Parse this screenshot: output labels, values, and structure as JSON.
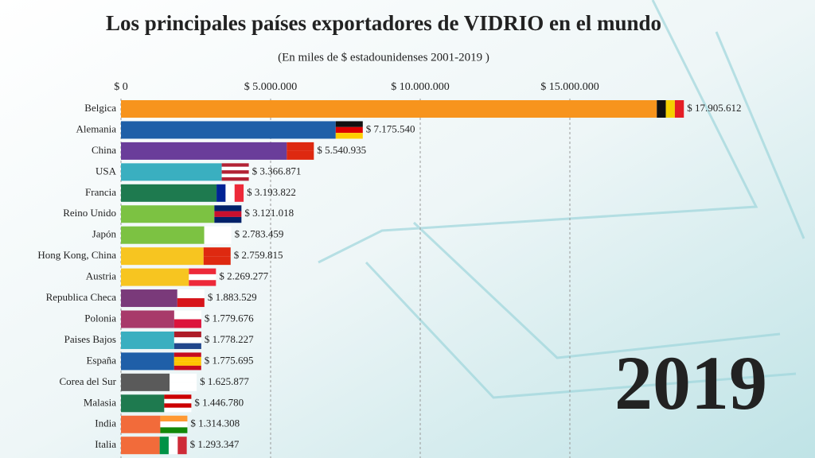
{
  "chart_data": {
    "type": "bar",
    "orientation": "horizontal",
    "title": "Los principales países exportadores de VIDRIO en el mundo",
    "subtitle": "(En miles de $ estadounidenses 2001-2019 )",
    "annotation": "2019",
    "categories": [
      "Belgica",
      "Alemania",
      "China",
      "USA",
      "Francia",
      "Reino Unido",
      "Japón",
      "Hong Kong, China",
      "Austria",
      "Republica Checa",
      "Polonia",
      "Paises Bajos",
      "España",
      "Corea del Sur",
      "Malasia",
      "India",
      "Italia"
    ],
    "values": [
      17905612,
      7175540,
      5540935,
      3366871,
      3193822,
      3121018,
      2783459,
      2759815,
      2269277,
      1883529,
      1779676,
      1778227,
      1775695,
      1625877,
      1446780,
      1314308,
      1293347
    ],
    "value_labels": [
      "$ 17.905.612",
      "$ 7.175.540",
      "$ 5.540.935",
      "$ 3.366.871",
      "$ 3.193.822",
      "$ 3.121.018",
      "$ 2.783.459",
      "$ 2.759.815",
      "$ 2.269.277",
      "$ 1.883.529",
      "$ 1.779.676",
      "$ 1.778.227",
      "$ 1.775.695",
      "$ 1.625.877",
      "$ 1.446.780",
      "$ 1.314.308",
      "$ 1.293.347"
    ],
    "colors": [
      "#f7941d",
      "#1f5fa8",
      "#6a3d9a",
      "#3aafc0",
      "#1e7a4f",
      "#7cc242",
      "#7cc242",
      "#f7c520",
      "#f7c520",
      "#7a3a7a",
      "#a83a6a",
      "#3aafc0",
      "#1f5fa8",
      "#5a5a5a",
      "#1e7a4f",
      "#f26b3a",
      "#f26b3a"
    ],
    "xlim": [
      0,
      20000000
    ],
    "xticks": [
      {
        "value": 0,
        "label": "$ 0"
      },
      {
        "value": 5000000,
        "label": "$ 5.000.000"
      },
      {
        "value": 10000000,
        "label": "$ 10.000.000"
      },
      {
        "value": 15000000,
        "label": "$ 15.000.000"
      }
    ],
    "grid": true
  }
}
